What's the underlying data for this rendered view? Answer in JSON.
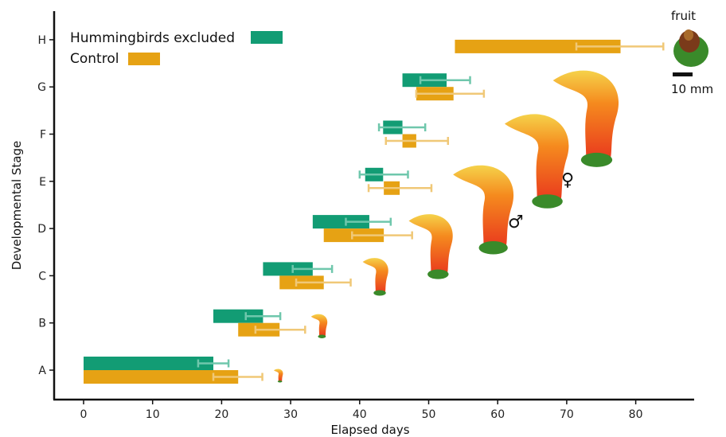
{
  "chart_data": {
    "type": "bar",
    "orientation": "horizontal",
    "xlabel": "Elapsed days",
    "ylabel": "Developmental Stage",
    "xlim": [
      -4,
      88
    ],
    "xticks": [
      0,
      10,
      20,
      30,
      40,
      50,
      60,
      70,
      80
    ],
    "categories": [
      "A",
      "B",
      "C",
      "D",
      "E",
      "F",
      "G",
      "H"
    ],
    "legend": {
      "placement": "top-left"
    },
    "series": [
      {
        "name": "Hummingbirds excluded",
        "color": "#129c74",
        "errcolor": "#6fc7ac",
        "start": [
          0,
          18.8,
          26,
          33.2,
          40.8,
          43.4,
          46.2,
          null
        ],
        "end": [
          18.8,
          26,
          33.2,
          41.4,
          43.4,
          46.2,
          52.6,
          null
        ],
        "err_low": [
          16.6,
          23.5,
          30.3,
          38.0,
          40.0,
          42.8,
          48.8,
          null
        ],
        "err_high": [
          21.0,
          28.5,
          36.0,
          44.5,
          47.0,
          49.5,
          56.0,
          null
        ]
      },
      {
        "name": "Control",
        "color": "#e6a214",
        "errcolor": "#f0c877",
        "start": [
          0,
          22.4,
          28.4,
          34.8,
          43.5,
          46.2,
          48.2,
          53.8
        ],
        "end": [
          22.4,
          28.4,
          34.8,
          43.5,
          45.8,
          48.2,
          53.6,
          77.8
        ],
        "err_low": [
          18.8,
          24.9,
          30.8,
          38.9,
          41.3,
          43.8,
          48.2,
          71.4
        ],
        "err_high": [
          25.9,
          32.1,
          38.7,
          47.6,
          50.4,
          52.8,
          58.0,
          84.0
        ]
      }
    ],
    "annotations": {
      "male_symbol": "♂",
      "female_symbol": "♀",
      "fruit_label": "fruit",
      "scale_label": "10 mm"
    }
  },
  "images": {
    "flower_colors": {
      "red": "#e8321e",
      "orange": "#f58a1e",
      "yellow": "#f5d24a",
      "green": "#3a8a2a"
    }
  }
}
